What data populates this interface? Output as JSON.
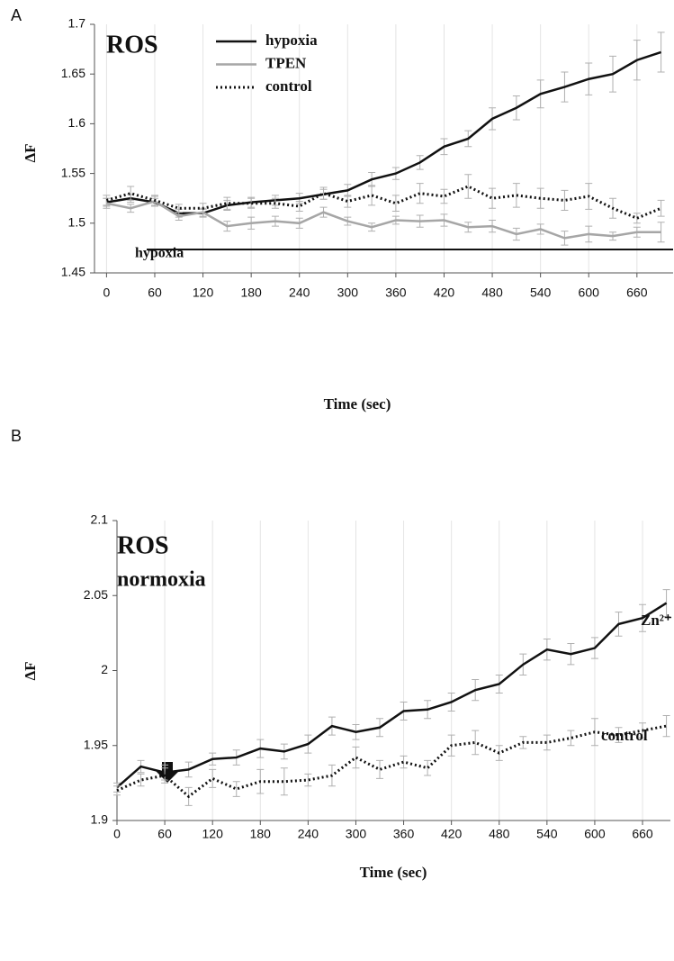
{
  "chart_data": [
    {
      "type": "line",
      "panel": "A",
      "title": "ROS",
      "x_label": "Time (sec)",
      "y_label": "ΔF",
      "annotation": "hypoxia",
      "x": [
        0,
        30,
        60,
        90,
        120,
        150,
        180,
        210,
        240,
        270,
        300,
        330,
        360,
        390,
        420,
        450,
        480,
        510,
        540,
        570,
        600,
        630,
        660,
        690
      ],
      "xlim": [
        -15,
        705
      ],
      "xticks": [
        0,
        60,
        120,
        180,
        240,
        300,
        360,
        420,
        480,
        540,
        600,
        660
      ],
      "ylim": [
        1.45,
        1.7
      ],
      "yticks": [
        1.45,
        1.5,
        1.55,
        1.6,
        1.65,
        1.7
      ],
      "grid": true,
      "legend": "top",
      "series": [
        {
          "name": "hypoxia",
          "color": "#111111",
          "style": "solid",
          "values": [
            1.521,
            1.525,
            1.521,
            1.51,
            1.51,
            1.518,
            1.521,
            1.523,
            1.525,
            1.529,
            1.533,
            1.544,
            1.55,
            1.561,
            1.577,
            1.585,
            1.605,
            1.616,
            1.63,
            1.637,
            1.645,
            1.65,
            1.664,
            1.672
          ],
          "errors": [
            0.004,
            0.004,
            0.004,
            0.004,
            0.004,
            0.005,
            0.005,
            0.005,
            0.005,
            0.005,
            0.006,
            0.007,
            0.006,
            0.007,
            0.008,
            0.008,
            0.011,
            0.012,
            0.014,
            0.015,
            0.016,
            0.018,
            0.02,
            0.02
          ]
        },
        {
          "name": "TPEN",
          "color": "#a6a6a6",
          "style": "solid",
          "values": [
            1.52,
            1.515,
            1.522,
            1.507,
            1.511,
            1.497,
            1.5,
            1.502,
            1.5,
            1.511,
            1.502,
            1.496,
            1.503,
            1.502,
            1.503,
            1.496,
            1.497,
            1.489,
            1.494,
            1.485,
            1.489,
            1.487,
            1.491,
            1.491
          ],
          "errors": [
            0.005,
            0.004,
            0.005,
            0.004,
            0.004,
            0.005,
            0.006,
            0.005,
            0.005,
            0.005,
            0.004,
            0.004,
            0.004,
            0.006,
            0.006,
            0.005,
            0.006,
            0.006,
            0.005,
            0.007,
            0.008,
            0.004,
            0.005,
            0.01
          ]
        },
        {
          "name": "control",
          "color": "#111111",
          "style": "dotted",
          "values": [
            1.523,
            1.53,
            1.523,
            1.515,
            1.515,
            1.52,
            1.52,
            1.52,
            1.517,
            1.53,
            1.522,
            1.528,
            1.52,
            1.53,
            1.527,
            1.537,
            1.525,
            1.528,
            1.525,
            1.523,
            1.527,
            1.515,
            1.505,
            1.515
          ],
          "errors": [
            0.005,
            0.007,
            0.005,
            0.004,
            0.005,
            0.006,
            0.005,
            0.005,
            0.005,
            0.006,
            0.006,
            0.01,
            0.008,
            0.01,
            0.007,
            0.012,
            0.01,
            0.012,
            0.01,
            0.01,
            0.013,
            0.01,
            0.005,
            0.008
          ]
        }
      ]
    },
    {
      "type": "line",
      "panel": "B",
      "title": "ROS",
      "subtitle": "normoxia",
      "x_label": "Time (sec)",
      "y_label": "ΔF",
      "x": [
        0,
        30,
        60,
        90,
        120,
        150,
        180,
        210,
        240,
        270,
        300,
        330,
        360,
        390,
        420,
        450,
        480,
        510,
        540,
        570,
        600,
        630,
        660,
        690
      ],
      "xlim": [
        0,
        695
      ],
      "xticks": [
        0,
        60,
        120,
        180,
        240,
        300,
        360,
        420,
        480,
        540,
        600,
        660
      ],
      "ylim": [
        1.9,
        2.1
      ],
      "yticks": [
        1.9,
        1.95,
        2,
        2.05,
        2.1
      ],
      "grid": true,
      "series": [
        {
          "name": "Zn²⁺",
          "color": "#111111",
          "style": "solid",
          "values": [
            1.922,
            1.936,
            1.932,
            1.934,
            1.941,
            1.942,
            1.948,
            1.946,
            1.951,
            1.963,
            1.959,
            1.962,
            1.973,
            1.974,
            1.979,
            1.987,
            1.991,
            2.004,
            2.014,
            2.011,
            2.015,
            2.031,
            2.035,
            2.045
          ],
          "errors": [
            0.003,
            0.004,
            0.005,
            0.005,
            0.004,
            0.005,
            0.006,
            0.005,
            0.006,
            0.006,
            0.005,
            0.006,
            0.006,
            0.006,
            0.006,
            0.007,
            0.006,
            0.007,
            0.007,
            0.007,
            0.007,
            0.008,
            0.009,
            0.009
          ]
        },
        {
          "name": "control",
          "color": "#111111",
          "style": "dotted",
          "values": [
            1.92,
            1.927,
            1.93,
            1.916,
            1.928,
            1.921,
            1.926,
            1.926,
            1.927,
            1.93,
            1.942,
            1.934,
            1.939,
            1.935,
            1.95,
            1.952,
            1.945,
            1.952,
            1.952,
            1.955,
            1.959,
            1.957,
            1.96,
            1.963
          ],
          "errors": [
            0.003,
            0.004,
            0.005,
            0.006,
            0.006,
            0.005,
            0.008,
            0.009,
            0.004,
            0.007,
            0.007,
            0.006,
            0.004,
            0.005,
            0.007,
            0.008,
            0.005,
            0.004,
            0.005,
            0.005,
            0.009,
            0.005,
            0.005,
            0.007
          ]
        }
      ]
    }
  ]
}
